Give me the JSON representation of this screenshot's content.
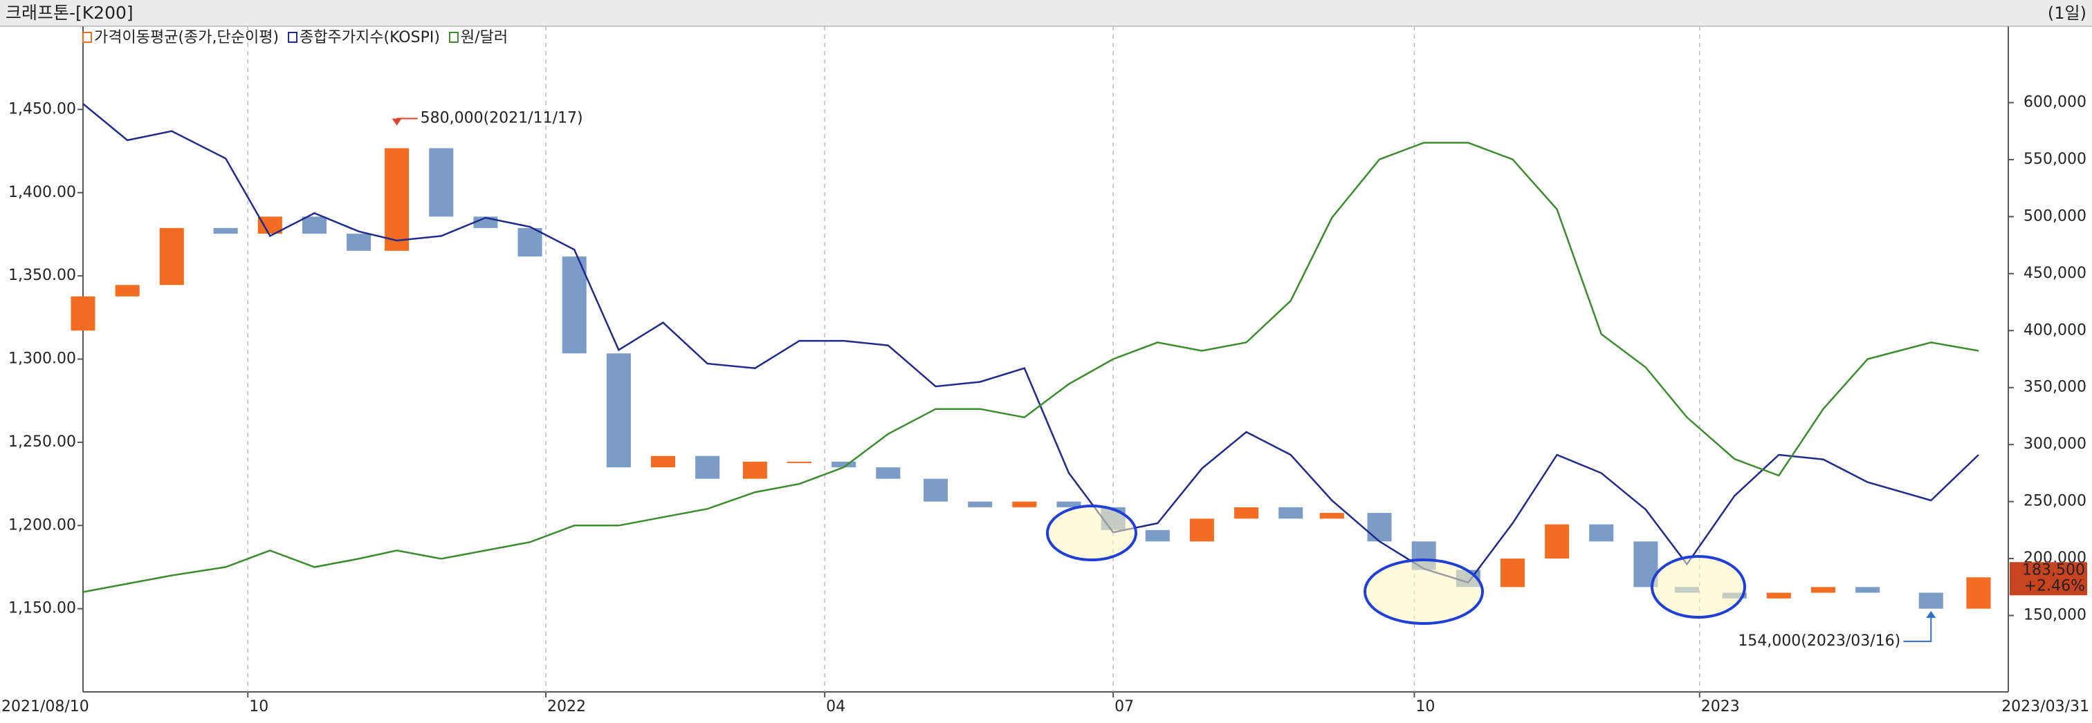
{
  "chart_data": {
    "type": "candlestick",
    "title": "크래프톤-[K200]",
    "period": "(1일)",
    "x": [
      "2021/08/10",
      "2021/08/24",
      "2021/09/07",
      "2021/09/24",
      "2021/10/08",
      "2021/10/22",
      "2021/11/05",
      "2021/11/17",
      "2021/12/01",
      "2021/12/15",
      "2021/12/29",
      "2022/01/12",
      "2022/01/26",
      "2022/02/09",
      "2022/02/23",
      "2022/03/10",
      "2022/03/24",
      "2022/04/07",
      "2022/04/21",
      "2022/05/06",
      "2022/05/20",
      "2022/06/03",
      "2022/06/17",
      "2022/07/01",
      "2022/07/15",
      "2022/07/29",
      "2022/08/12",
      "2022/08/26",
      "2022/09/08",
      "2022/09/23",
      "2022/10/07",
      "2022/10/21",
      "2022/11/04",
      "2022/11/18",
      "2022/12/02",
      "2022/12/16",
      "2022/12/29",
      "2023/01/13",
      "2023/01/27",
      "2023/02/10",
      "2023/02/24",
      "2023/03/16",
      "2023/03/31"
    ],
    "xlim": [
      "2021/08/10",
      "2023/03/31"
    ],
    "xticks": [
      {
        "value": "2021/08/10",
        "label": "2021/08/10"
      },
      {
        "value": "2021/10/01",
        "label": "10"
      },
      {
        "value": "2022/01/03",
        "label": "2022"
      },
      {
        "value": "2022/04/01",
        "label": "04"
      },
      {
        "value": "2022/07/01",
        "label": "07"
      },
      {
        "value": "2022/10/04",
        "label": "10"
      },
      {
        "value": "2023/01/02",
        "label": "2023"
      },
      {
        "value": "2023/03/31",
        "label": "2023/03/31"
      }
    ],
    "ylim": [
      1100,
      1500
    ],
    "yticks": [
      {
        "value": 1150,
        "label": "1,150.00"
      },
      {
        "value": 1200,
        "label": "1,200.00"
      },
      {
        "value": 1250,
        "label": "1,250.00"
      },
      {
        "value": 1300,
        "label": "1,300.00"
      },
      {
        "value": 1350,
        "label": "1,350.00"
      },
      {
        "value": 1400,
        "label": "1,400.00"
      },
      {
        "value": 1450,
        "label": "1,450.00"
      }
    ],
    "y2lim": [
      83000,
      667000
    ],
    "y2ticks": [
      {
        "value": 150000,
        "label": "150,000"
      },
      {
        "value": 200000,
        "label": "200,000"
      },
      {
        "value": 250000,
        "label": "250,000"
      },
      {
        "value": 300000,
        "label": "300,000"
      },
      {
        "value": 350000,
        "label": "350,000"
      },
      {
        "value": 400000,
        "label": "400,000"
      },
      {
        "value": 450000,
        "label": "450,000"
      },
      {
        "value": 500000,
        "label": "500,000"
      },
      {
        "value": 550000,
        "label": "550,000"
      },
      {
        "value": 600000,
        "label": "600,000"
      }
    ],
    "y3lim": [
      1960,
      3420
    ],
    "series": [
      {
        "name": "가격이동평균(종가,단순이평)",
        "color": "#f26d21",
        "down_color": "#7a9cc6",
        "axis": "y2",
        "open": [
          400000,
          430000,
          440000,
          490000,
          485000,
          500000,
          485000,
          470000,
          560000,
          500000,
          490000,
          465000,
          380000,
          280000,
          290000,
          270000,
          285000,
          285000,
          280000,
          270000,
          250000,
          245000,
          250000,
          245000,
          225000,
          215000,
          235000,
          245000,
          235000,
          240000,
          215000,
          190000,
          175000,
          200000,
          230000,
          215000,
          175000,
          170000,
          165000,
          170000,
          175000,
          170000,
          156000
        ],
        "close": [
          430000,
          440000,
          490000,
          485000,
          500000,
          485000,
          470000,
          560000,
          500000,
          490000,
          465000,
          380000,
          280000,
          290000,
          270000,
          285000,
          285000,
          280000,
          270000,
          250000,
          245000,
          250000,
          245000,
          225000,
          215000,
          235000,
          245000,
          235000,
          240000,
          215000,
          190000,
          175000,
          200000,
          230000,
          215000,
          175000,
          170000,
          165000,
          170000,
          175000,
          170000,
          156000,
          183500
        ]
      },
      {
        "name": "종합주가지수(KOSPI)",
        "color": "#1f2a8c",
        "axis": "y3",
        "values": [
          3250,
          3170,
          3190,
          3130,
          2960,
          3010,
          2970,
          2950,
          2960,
          3000,
          2980,
          2930,
          2710,
          2770,
          2680,
          2670,
          2730,
          2730,
          2720,
          2630,
          2640,
          2670,
          2440,
          2310,
          2330,
          2450,
          2530,
          2480,
          2380,
          2290,
          2230,
          2200,
          2330,
          2480,
          2440,
          2360,
          2240,
          2390,
          2480,
          2470,
          2420,
          2380,
          2480
        ]
      },
      {
        "name": "원/달러",
        "color": "#3d8b2f",
        "values": [
          1160,
          1165,
          1170,
          1175,
          1185,
          1175,
          1180,
          1185,
          1180,
          1185,
          1190,
          1200,
          1200,
          1205,
          1210,
          1220,
          1225,
          1235,
          1255,
          1270,
          1270,
          1265,
          1285,
          1300,
          1310,
          1305,
          1310,
          1335,
          1385,
          1420,
          1430,
          1430,
          1420,
          1390,
          1315,
          1295,
          1265,
          1240,
          1230,
          1270,
          1300,
          1310,
          1305
        ]
      }
    ],
    "annotations": [
      {
        "date": "2021/11/17",
        "value": 580000,
        "label": "580,000(2021/11/17)",
        "color": "#d9442b"
      },
      {
        "date": "2023/03/16",
        "value": 154000,
        "label": "154,000(2023/03/16)",
        "color": "#2e6fc4"
      }
    ],
    "last_price": {
      "value": 183500,
      "label": "183,500"
    },
    "change": {
      "value": 2.46,
      "label": "+2.46%"
    },
    "tag_color": "#c8431f"
  }
}
